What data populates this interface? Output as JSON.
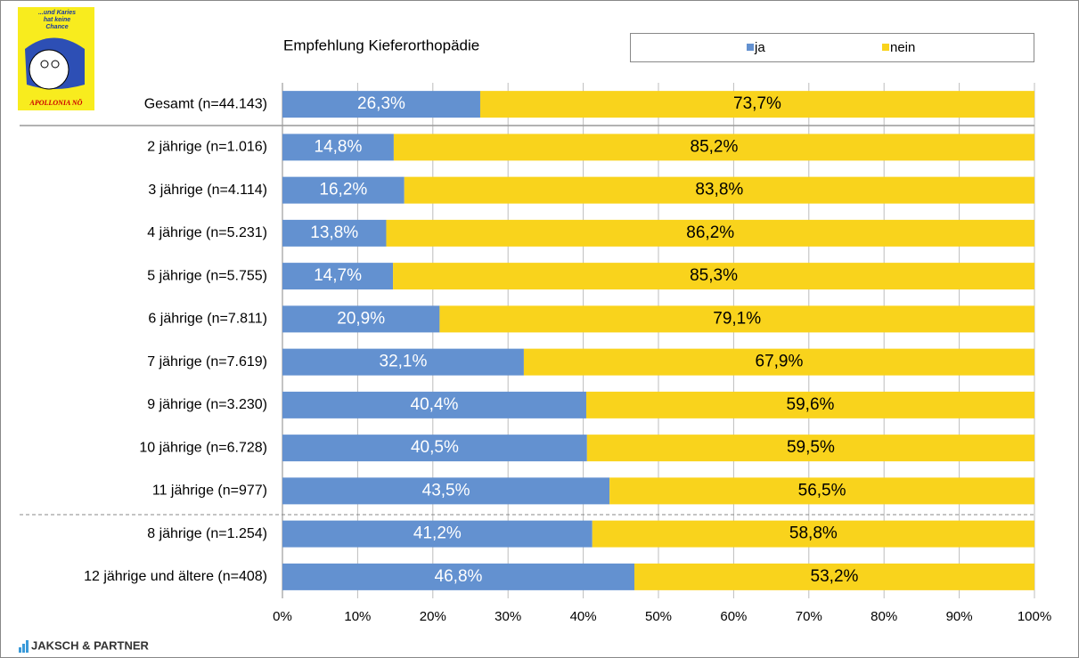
{
  "branding": {
    "top_logo": [
      "...und Karies",
      "hat keine",
      "Chance",
      "APOLLONIA NÖ"
    ],
    "bottom_logo": "JAKSCH & PARTNER"
  },
  "chart_data": {
    "type": "stacked-bar-horizontal",
    "title": "Empfehlung Kieferorthopädie",
    "categories": [
      "Gesamt (n=44.143)",
      "2 jährige (n=1.016)",
      "3 jährige (n=4.114)",
      "4 jährige (n=5.231)",
      "5 jährige (n=5.755)",
      "6 jährige (n=7.811)",
      "7 jährige (n=7.619)",
      "9 jährige (n=3.230)",
      "10 jährige (n=6.728)",
      "11 jährige (n=977)",
      "8 jährige (n=1.254)",
      "12 jährige und ältere (n=408)"
    ],
    "series": [
      {
        "name": "ja",
        "color": "#6391d0",
        "label_color": "#ffffff",
        "values": [
          26.3,
          14.8,
          16.2,
          13.8,
          14.7,
          20.9,
          32.1,
          40.4,
          40.5,
          43.5,
          41.2,
          46.8
        ],
        "value_labels": [
          "26,3%",
          "14,8%",
          "16,2%",
          "13,8%",
          "14,7%",
          "20,9%",
          "32,1%",
          "40,4%",
          "40,5%",
          "43,5%",
          "41,2%",
          "46,8%"
        ]
      },
      {
        "name": "nein",
        "color": "#f9d31c",
        "label_color": "#000000",
        "values": [
          73.7,
          85.2,
          83.8,
          86.2,
          85.3,
          79.1,
          67.9,
          59.6,
          59.5,
          56.5,
          58.8,
          53.2
        ],
        "value_labels": [
          "73,7%",
          "85,2%",
          "83,8%",
          "86,2%",
          "85,3%",
          "79,1%",
          "67,9%",
          "59,6%",
          "59,5%",
          "56,5%",
          "58,8%",
          "53,2%"
        ]
      }
    ],
    "xlim": [
      0,
      100
    ],
    "xticks": [
      {
        "value": 0,
        "label": "0%"
      },
      {
        "value": 10,
        "label": "10%"
      },
      {
        "value": 20,
        "label": "20%"
      },
      {
        "value": 30,
        "label": "30%"
      },
      {
        "value": 40,
        "label": "40%"
      },
      {
        "value": 50,
        "label": "50%"
      },
      {
        "value": 60,
        "label": "60%"
      },
      {
        "value": 70,
        "label": "70%"
      },
      {
        "value": 80,
        "label": "80%"
      },
      {
        "value": 90,
        "label": "90%"
      },
      {
        "value": 100,
        "label": "100%"
      }
    ],
    "grid": true
  }
}
